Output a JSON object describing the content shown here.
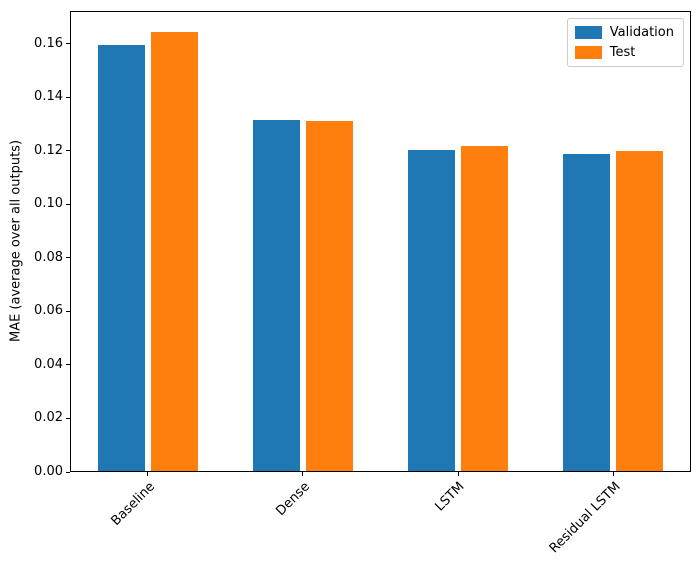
{
  "chart_data": {
    "type": "bar",
    "title": "",
    "xlabel": "",
    "ylabel": "MAE (average over all outputs)",
    "categories": [
      "Baseline",
      "Dense",
      "LSTM",
      "Residual LSTM"
    ],
    "series": [
      {
        "name": "Validation",
        "color": "#1f77b4",
        "values": [
          0.159,
          0.131,
          0.12,
          0.1185
        ]
      },
      {
        "name": "Test",
        "color": "#ff7f0e",
        "values": [
          0.164,
          0.1308,
          0.1215,
          0.1195
        ]
      }
    ],
    "ylim": [
      0,
      0.1722
    ],
    "yticks": [
      0.0,
      0.02,
      0.04,
      0.06,
      0.08,
      0.1,
      0.12,
      0.14,
      0.16
    ],
    "ytick_decimals": 2,
    "grid": false,
    "legend_position": "upper right",
    "x_tick_rotation_deg": 45,
    "background_color": "#ffffff",
    "spine_color": "#000000"
  }
}
